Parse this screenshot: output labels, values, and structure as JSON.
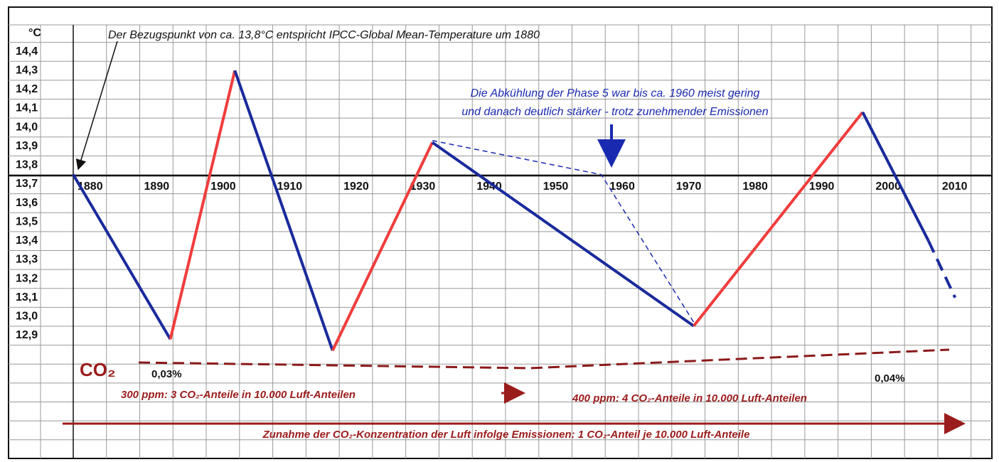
{
  "chart_data": {
    "type": "line",
    "y_label": "°C",
    "annotations": [
      "Der Bezugspunkt von ca. 13,8°C entspricht IPCC-Global Mean-Temperature um 1880",
      "Die Abkühlung der Phase 5 war bis ca. 1960 meist gering",
      "und danach deutlich stärker - trotz zunehmender Emissionen",
      "CO₂",
      "0,03%",
      "0,04%",
      "300 ppm: 3 CO₂-Anteile in 10.000 Luft-Anteilen",
      "400 ppm: 4 CO₂-Anteile in 10.000 Luft-Anteilen",
      "Zunahme der CO₂-Konzentration der Luft infolge Emissionen: 1 CO₂-Anteil je 10.000 Luft-Anteile"
    ],
    "x": [
      1880,
      1894.6,
      1904.3,
      1919,
      1934,
      1973.3,
      1998.7,
      2008.6,
      2012.6
    ],
    "values": [
      13.75,
      12.88,
      14.3,
      12.82,
      13.92,
      12.95,
      14.08,
      13.4,
      13.1
    ],
    "segment_colors": [
      "#1a2a9c",
      "#f03c3c",
      "#1a2a9c",
      "#f03c3c",
      "#1a2a9c",
      "#f03c3c",
      "#1a2a9c",
      "#1a2a9c"
    ],
    "segment_dashed": [
      false,
      false,
      false,
      false,
      false,
      false,
      false,
      true
    ],
    "alt_line": {
      "x": [
        1934,
        1959.4,
        1973.3
      ],
      "values": [
        13.93,
        13.75,
        12.97
      ],
      "color": "#1a2ab0"
    },
    "xlim": [
      1880,
      2017.6
    ],
    "ylim": [
      12.25,
      14.53
    ],
    "xticks": [
      1880,
      1890,
      1900,
      1910,
      1920,
      1930,
      1940,
      1950,
      1960,
      1970,
      1980,
      1990,
      2000,
      2010
    ],
    "yticks": [
      {
        "value": 14.4,
        "label": "14,4"
      },
      {
        "value": 14.3,
        "label": "14,3"
      },
      {
        "value": 14.2,
        "label": "14,2"
      },
      {
        "value": 14.1,
        "label": "14,1"
      },
      {
        "value": 14.0,
        "label": "14,0"
      },
      {
        "value": 13.9,
        "label": "13,9"
      },
      {
        "value": 13.8,
        "label": "13,8"
      },
      {
        "value": 13.7,
        "label": "13,7"
      },
      {
        "value": 13.6,
        "label": "13,6"
      },
      {
        "value": 13.5,
        "label": "13,5"
      },
      {
        "value": 13.4,
        "label": "13,4"
      },
      {
        "value": 13.3,
        "label": "13,3"
      },
      {
        "value": 13.2,
        "label": "13,2"
      },
      {
        "value": 13.1,
        "label": "13,1"
      },
      {
        "value": 13.0,
        "label": "13,0"
      },
      {
        "value": 12.9,
        "label": "12,9"
      }
    ],
    "grid": true
  }
}
